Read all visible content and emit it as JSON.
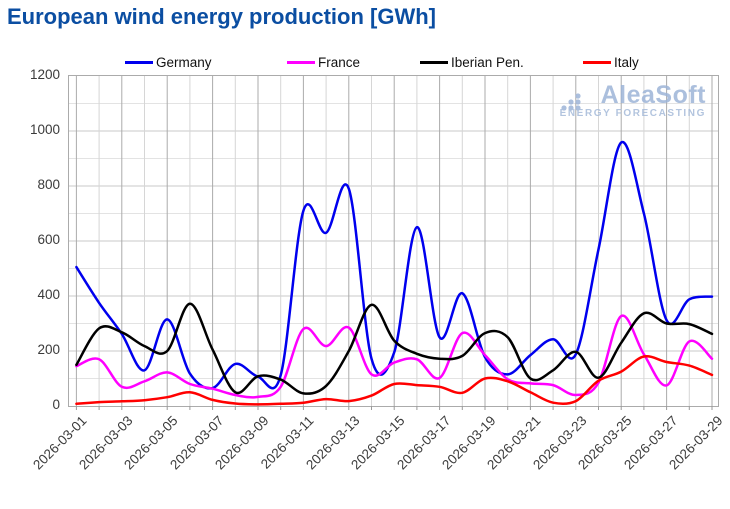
{
  "title": "European wind energy production [GWh]",
  "watermark": {
    "name": "AleaSoft",
    "tagline": "ENERGY FORECASTING"
  },
  "colors": {
    "title": "#0b4ea2",
    "germany": "#0000ee",
    "france": "#ff00ff",
    "iberian": "#000000",
    "italy": "#ff0000",
    "watermark": "#9db4d8"
  },
  "chart_data": {
    "type": "line",
    "title": "European wind energy production [GWh]",
    "xlabel": "",
    "ylabel": "",
    "ylim": [
      0,
      1200
    ],
    "yticks": [
      0,
      200,
      400,
      600,
      800,
      1000,
      1200
    ],
    "grid": true,
    "legend_position": "top",
    "x": [
      "2026-03-01",
      "2026-03-02",
      "2026-03-03",
      "2026-03-04",
      "2026-03-05",
      "2026-03-06",
      "2026-03-07",
      "2026-03-08",
      "2026-03-09",
      "2026-03-10",
      "2026-03-11",
      "2026-03-12",
      "2026-03-13",
      "2026-03-14",
      "2026-03-15",
      "2026-03-16",
      "2026-03-17",
      "2026-03-18",
      "2026-03-19",
      "2026-03-20",
      "2026-03-21",
      "2026-03-22",
      "2026-03-23",
      "2026-03-24",
      "2026-03-25",
      "2026-03-26",
      "2026-03-27",
      "2026-03-28",
      "2026-03-29"
    ],
    "x_tick_labels": [
      "2026-03-01",
      "2026-03-03",
      "2026-03-05",
      "2026-03-07",
      "2026-03-09",
      "2026-03-11",
      "2026-03-13",
      "2026-03-15",
      "2026-03-17",
      "2026-03-19",
      "2026-03-21",
      "2026-03-23",
      "2026-03-25",
      "2026-03-27",
      "2026-03-29"
    ],
    "series": [
      {
        "name": "Germany",
        "color": "#0000ee",
        "values": [
          505,
          375,
          262,
          130,
          315,
          118,
          65,
          153,
          107,
          112,
          710,
          630,
          790,
          172,
          195,
          650,
          250,
          410,
          178,
          115,
          185,
          243,
          188,
          570,
          958,
          700,
          312,
          388,
          398
        ]
      },
      {
        "name": "France",
        "color": "#ff00ff",
        "values": [
          145,
          170,
          70,
          90,
          122,
          80,
          63,
          40,
          33,
          70,
          280,
          218,
          285,
          115,
          158,
          170,
          102,
          265,
          185,
          97,
          82,
          76,
          40,
          85,
          327,
          188,
          75,
          235,
          172
        ]
      },
      {
        "name": "Iberian Pen.",
        "color": "#000000",
        "values": [
          150,
          282,
          268,
          218,
          200,
          372,
          205,
          50,
          108,
          96,
          46,
          73,
          200,
          368,
          238,
          190,
          172,
          182,
          265,
          250,
          100,
          130,
          197,
          103,
          230,
          337,
          300,
          298,
          262
        ]
      },
      {
        "name": "Italy",
        "color": "#ff0000",
        "values": [
          8,
          14,
          17,
          21,
          32,
          50,
          22,
          9,
          6,
          8,
          12,
          25,
          18,
          38,
          80,
          76,
          70,
          48,
          100,
          90,
          50,
          12,
          18,
          92,
          125,
          180,
          160,
          147,
          113
        ]
      }
    ]
  }
}
